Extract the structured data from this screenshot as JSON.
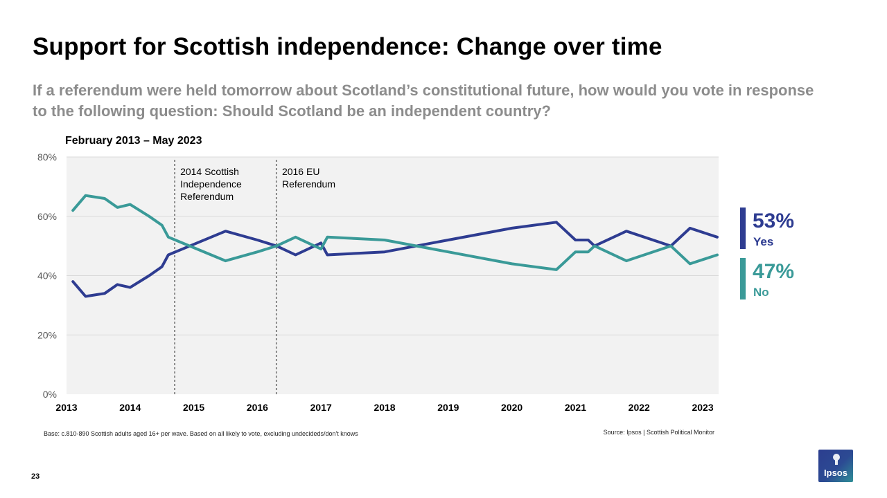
{
  "slide": {
    "title": "Support for Scottish independence: Change over time",
    "subtitle": "If a referendum were held tomorrow about Scotland’s constitutional future, how would you vote in response to the following question: Should Scotland be an independent country?",
    "period": "February 2013 – May 2023",
    "base_note": "Base: c.810-890 Scottish adults aged 16+ per wave. Based on all likely to vote, excluding undecideds/don't knows",
    "source_note": "Source: Ipsos | Scottish Political Monitor",
    "page_number": "23",
    "logo_text": "Ipsos"
  },
  "legend": {
    "yes": {
      "pct": "53%",
      "label": "Yes"
    },
    "no": {
      "pct": "47%",
      "label": "No"
    }
  },
  "colors": {
    "yes": "#2e3c91",
    "no": "#3a9a98",
    "plot_bg": "#f2f2f2",
    "grid": "#d9d9d9",
    "axis_text": "#595959",
    "event_line": "#8c8c8c",
    "logo": "#2c4a93"
  },
  "chart_data": {
    "type": "line",
    "x_unit": "year",
    "xlim": [
      2013,
      2023.25
    ],
    "ylim": [
      0,
      80
    ],
    "y_ticks": [
      "0%",
      "20%",
      "40%",
      "60%",
      "80%"
    ],
    "x_ticks": [
      "2013",
      "2014",
      "2015",
      "2016",
      "2017",
      "2018",
      "2019",
      "2020",
      "2021",
      "2022",
      "2023"
    ],
    "grid": true,
    "legend_position": "right",
    "series": [
      {
        "name": "Yes",
        "x": [
          2013.1,
          2013.3,
          2013.6,
          2013.8,
          2014.0,
          2014.3,
          2014.5,
          2014.6,
          2015.5,
          2016.0,
          2016.3,
          2016.6,
          2017.0,
          2017.1,
          2018.0,
          2019.0,
          2020.0,
          2020.7,
          2020.8,
          2021.0,
          2021.2,
          2021.3,
          2021.8,
          2022.5,
          2022.8,
          2023.3
        ],
        "y": [
          38,
          33,
          34,
          37,
          36,
          40,
          43,
          47,
          55,
          52,
          50,
          47,
          51,
          47,
          48,
          52,
          56,
          58,
          56,
          52,
          52,
          50,
          55,
          50,
          56,
          53
        ]
      },
      {
        "name": "No",
        "x": [
          2013.1,
          2013.3,
          2013.6,
          2013.8,
          2014.0,
          2014.3,
          2014.5,
          2014.6,
          2015.5,
          2016.0,
          2016.3,
          2016.6,
          2017.0,
          2017.1,
          2018.0,
          2019.0,
          2020.0,
          2020.7,
          2020.8,
          2021.0,
          2021.2,
          2021.3,
          2021.8,
          2022.5,
          2022.8,
          2023.3
        ],
        "y": [
          62,
          67,
          66,
          63,
          64,
          60,
          57,
          53,
          45,
          48,
          50,
          53,
          49,
          53,
          52,
          48,
          44,
          42,
          44,
          48,
          48,
          50,
          45,
          50,
          44,
          47
        ]
      }
    ],
    "annotations": [
      {
        "x": 2014.7,
        "text": [
          "2014 Scottish",
          "Independence",
          "Referendum"
        ]
      },
      {
        "x": 2016.3,
        "text": [
          "2016 EU",
          "Referendum"
        ]
      }
    ]
  }
}
